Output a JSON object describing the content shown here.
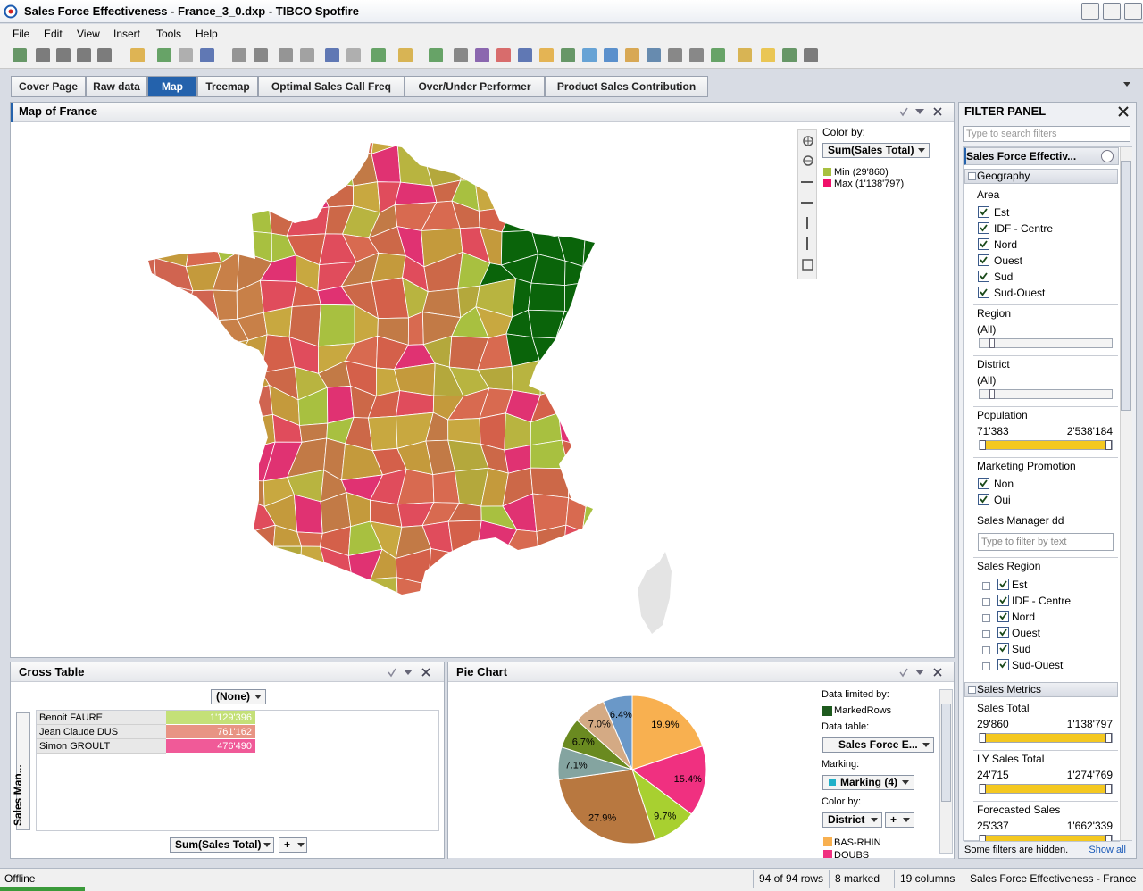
{
  "window": {
    "title": "Sales Force Effectiveness - France_3_0.dxp - TIBCO Spotfire"
  },
  "menu": [
    "File",
    "Edit",
    "View",
    "Insert",
    "Tools",
    "Help"
  ],
  "tabs": [
    "Cover Page",
    "Raw data",
    "Map",
    "Treemap",
    "Optimal Sales Call Freq",
    "Over/Under Performer",
    "Product Sales Contribution"
  ],
  "map_panel": {
    "title": "Map of France",
    "color_by_label": "Color by:",
    "color_by": "Sum(Sales Total)",
    "legend": [
      {
        "label": "Min (29'860)",
        "color": "#a8c040"
      },
      {
        "label": "Max (1'138'797)",
        "color": "#f0106a"
      }
    ]
  },
  "filter_panel": {
    "title": "FILTER PANEL",
    "search_placeholder": "Type to search filters",
    "table": "Sales Force Effectiv...",
    "geography": {
      "title": "Geography",
      "area": {
        "label": "Area",
        "items": [
          "Est",
          "IDF - Centre",
          "Nord",
          "Ouest",
          "Sud",
          "Sud-Ouest"
        ]
      },
      "region": {
        "label": "Region",
        "value": "(All)"
      },
      "district": {
        "label": "District",
        "value": "(All)"
      },
      "population": {
        "label": "Population",
        "min": "71'383",
        "max": "2'538'184"
      },
      "marketing_promotion": {
        "label": "Marketing Promotion",
        "items": [
          "Non",
          "Oui"
        ]
      },
      "sales_manager": {
        "label": "Sales Manager dd",
        "placeholder": "Type to filter by text"
      },
      "sales_region": {
        "label": "Sales Region",
        "items": [
          "Est",
          "IDF - Centre",
          "Nord",
          "Ouest",
          "Sud",
          "Sud-Ouest"
        ]
      }
    },
    "sales_metrics": {
      "title": "Sales Metrics",
      "filters": [
        {
          "label": "Sales Total",
          "min": "29'860",
          "max": "1'138'797"
        },
        {
          "label": "LY Sales Total",
          "min": "24'715",
          "max": "1'274'769"
        },
        {
          "label": "Forecasted Sales",
          "min": "25'337",
          "max": "1'662'339"
        }
      ]
    },
    "hidden_note": "Some filters are hidden.",
    "show_all": "Show all"
  },
  "cross_table": {
    "title": "Cross Table",
    "column_axis": "(None)",
    "row_axis": "Sales Man...",
    "value_axis": "Sum(Sales Total)",
    "add_axis": "+",
    "rows": [
      {
        "name": "Benoit FAURE",
        "value": "1'129'396",
        "color": "#c4e078"
      },
      {
        "name": "Jean Claude DUS",
        "value": "761'162",
        "color": "#e89484"
      },
      {
        "name": "Simon GROULT",
        "value": "476'490",
        "color": "#f05a98"
      }
    ]
  },
  "pie_chart": {
    "title": "Pie Chart",
    "data_limited_by_label": "Data limited by:",
    "data_limited_by": "MarkedRows",
    "data_limited_color": "#1e5a1e",
    "data_table_label": "Data table:",
    "data_table": "Sales Force E...",
    "marking_label": "Marking:",
    "marking": "Marking (4)",
    "marking_color": "#20b0c8",
    "color_by_label": "Color by:",
    "color_by": "District",
    "add_axis": "+",
    "legend": [
      {
        "name": "BAS-RHIN",
        "color": "#f8b050"
      },
      {
        "name": "DOUBS",
        "color": "#f03080"
      }
    ],
    "slices": [
      {
        "value": 19.9,
        "label": "19.9%",
        "color": "#f8b050"
      },
      {
        "value": 15.4,
        "label": "15.4%",
        "color": "#f03080"
      },
      {
        "value": 9.7,
        "label": "9.7%",
        "color": "#a8d030"
      },
      {
        "value": 27.9,
        "label": "27.9%",
        "color": "#b87840"
      },
      {
        "value": 7.1,
        "label": "7.1%",
        "color": "#84a4a0"
      },
      {
        "value": 6.7,
        "label": "6.7%",
        "color": "#6a8a20"
      },
      {
        "value": 7.0,
        "label": "7.0%",
        "color": "#d4aa84"
      },
      {
        "value": 6.4,
        "label": "6.4%",
        "color": "#6a98c8"
      }
    ]
  },
  "status_bar": [
    "Offline",
    "94 of 94 rows",
    "8 marked",
    "19 columns",
    "Sales Force Effectiveness - France"
  ]
}
